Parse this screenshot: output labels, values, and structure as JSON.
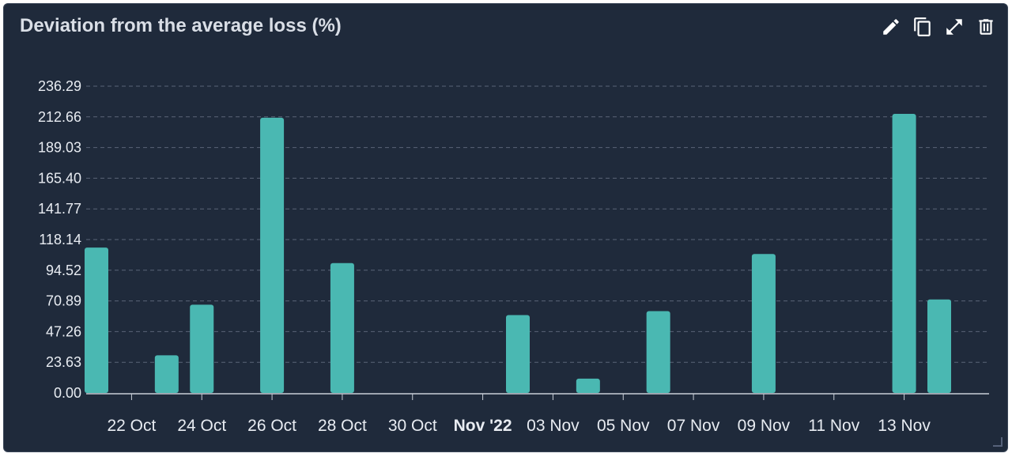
{
  "widget": {
    "title": "Deviation from the average loss (%)",
    "toolbar": {
      "edit_icon": "pencil-icon",
      "copy_icon": "copy-icon",
      "expand_icon": "expand-icon",
      "delete_icon": "trash-icon"
    }
  },
  "colors": {
    "background": "#1f2a3b",
    "bar": "#4ab8b2",
    "grid": "#5a6477",
    "text": "#e8ecf2"
  },
  "chart_data": {
    "type": "bar",
    "title": "Deviation from the average loss (%)",
    "xlabel": "",
    "ylabel": "",
    "ylim": [
      0,
      236.29
    ],
    "grid": true,
    "y_ticks": [
      "0.00",
      "23.63",
      "47.26",
      "70.89",
      "94.52",
      "118.14",
      "141.77",
      "165.40",
      "189.03",
      "212.66",
      "236.29"
    ],
    "x_ticks": [
      {
        "label": "22 Oct",
        "date": "2022-10-22",
        "bold": false
      },
      {
        "label": "24 Oct",
        "date": "2022-10-24",
        "bold": false
      },
      {
        "label": "26 Oct",
        "date": "2022-10-26",
        "bold": false
      },
      {
        "label": "28 Oct",
        "date": "2022-10-28",
        "bold": false
      },
      {
        "label": "30 Oct",
        "date": "2022-10-30",
        "bold": false
      },
      {
        "label": "Nov '22",
        "date": "2022-11-01",
        "bold": true
      },
      {
        "label": "03 Nov",
        "date": "2022-11-03",
        "bold": false
      },
      {
        "label": "05 Nov",
        "date": "2022-11-05",
        "bold": false
      },
      {
        "label": "07 Nov",
        "date": "2022-11-07",
        "bold": false
      },
      {
        "label": "09 Nov",
        "date": "2022-11-09",
        "bold": false
      },
      {
        "label": "11 Nov",
        "date": "2022-11-11",
        "bold": false
      },
      {
        "label": "13 Nov",
        "date": "2022-11-13",
        "bold": false
      }
    ],
    "x_range": [
      "2022-10-21",
      "2022-11-14"
    ],
    "bars": [
      {
        "date": "2022-10-21",
        "value": 112
      },
      {
        "date": "2022-10-23",
        "value": 29
      },
      {
        "date": "2022-10-24",
        "value": 68
      },
      {
        "date": "2022-10-26",
        "value": 212
      },
      {
        "date": "2022-10-28",
        "value": 100
      },
      {
        "date": "2022-11-02",
        "value": 60
      },
      {
        "date": "2022-11-04",
        "value": 11
      },
      {
        "date": "2022-11-06",
        "value": 63
      },
      {
        "date": "2022-11-09",
        "value": 107
      },
      {
        "date": "2022-11-13",
        "value": 215
      },
      {
        "date": "2022-11-14",
        "value": 72
      }
    ]
  }
}
